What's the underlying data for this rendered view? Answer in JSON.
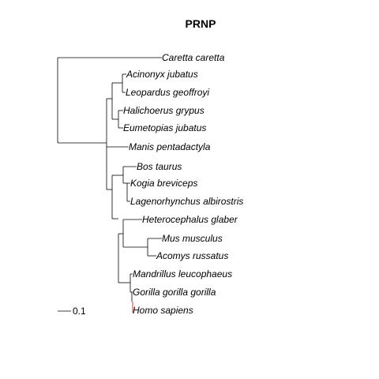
{
  "figure": {
    "title": "PRNP",
    "scale_bar_label": "0.1",
    "highlight_color": "#e00000",
    "line_color": "#000000"
  },
  "tips": [
    {
      "id": "caretta",
      "label": "Caretta caretta"
    },
    {
      "id": "acinonyx",
      "label": "Acinonyx jubatus"
    },
    {
      "id": "leopardus",
      "label": "Leopardus geoffroyi"
    },
    {
      "id": "halichoerus",
      "label": "Halichoerus grypus"
    },
    {
      "id": "eumetopias",
      "label": "Eumetopias jubatus"
    },
    {
      "id": "manis",
      "label": "Manis pentadactyla"
    },
    {
      "id": "bos",
      "label": "Bos taurus"
    },
    {
      "id": "kogia",
      "label": "Kogia breviceps"
    },
    {
      "id": "lagenorhynchus",
      "label": "Lagenorhynchus albirostris"
    },
    {
      "id": "heterocephalus",
      "label": "Heterocephalus glaber"
    },
    {
      "id": "mus",
      "label": "Mus musculus"
    },
    {
      "id": "acomys",
      "label": "Acomys russatus"
    },
    {
      "id": "mandrillus",
      "label": "Mandrillus leucophaeus"
    },
    {
      "id": "gorilla",
      "label": "Gorilla gorilla gorilla"
    },
    {
      "id": "homo",
      "label": "Homo sapiens"
    }
  ]
}
